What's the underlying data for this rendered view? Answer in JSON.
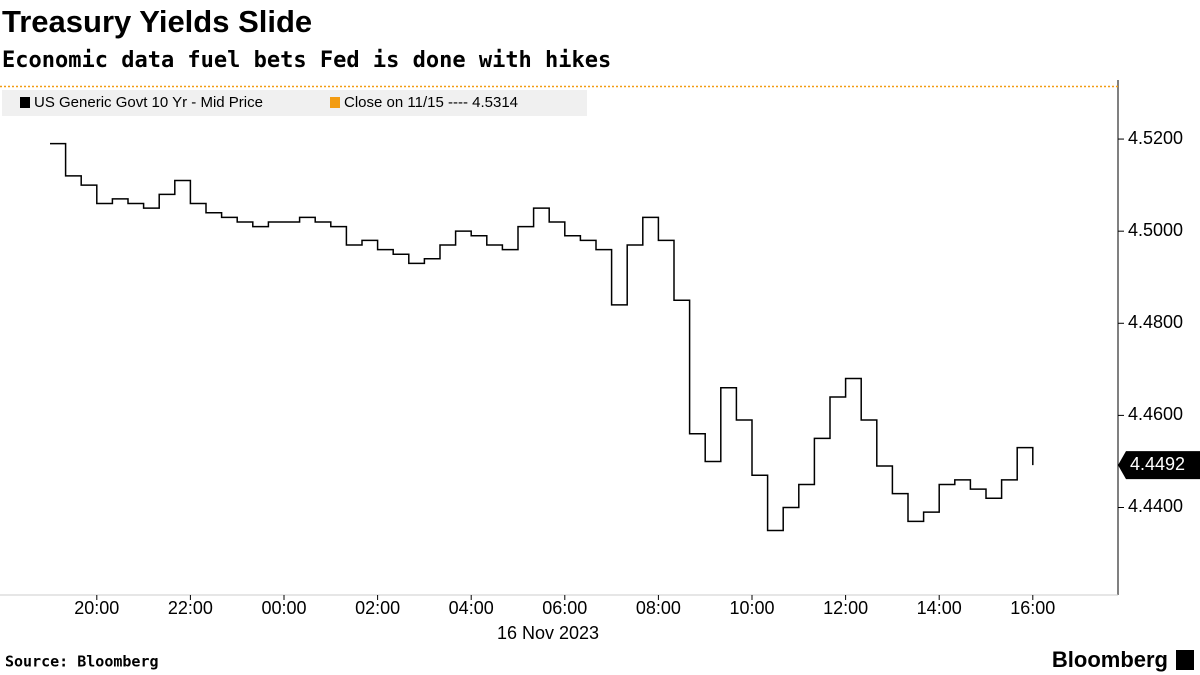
{
  "chart_data": {
    "type": "line",
    "title": "Treasury Yields Slide",
    "subtitle": "Economic data fuel bets Fed is done with hikes",
    "x": [
      "19:00",
      "19:20",
      "19:40",
      "20:00",
      "20:20",
      "20:40",
      "21:00",
      "21:20",
      "21:40",
      "22:00",
      "22:20",
      "22:40",
      "23:00",
      "23:20",
      "23:40",
      "00:00",
      "00:20",
      "00:40",
      "01:00",
      "01:20",
      "01:40",
      "02:00",
      "02:20",
      "02:40",
      "03:00",
      "03:20",
      "03:40",
      "04:00",
      "04:20",
      "04:40",
      "05:00",
      "05:20",
      "05:40",
      "06:00",
      "06:20",
      "06:40",
      "07:00",
      "07:20",
      "07:40",
      "08:00",
      "08:20",
      "08:40",
      "09:00",
      "09:20",
      "09:40",
      "10:00",
      "10:20",
      "10:40",
      "11:00",
      "11:20",
      "11:40",
      "12:00",
      "12:20",
      "12:40",
      "13:00",
      "13:20",
      "13:40",
      "14:00",
      "14:20",
      "14:40",
      "15:00",
      "15:20",
      "15:40",
      "16:00"
    ],
    "series": [
      {
        "name": "US Generic Govt 10 Yr - Mid Price",
        "color": "#000000",
        "values": [
          4.519,
          4.512,
          4.51,
          4.506,
          4.507,
          4.506,
          4.505,
          4.508,
          4.511,
          4.506,
          4.504,
          4.503,
          4.502,
          4.501,
          4.502,
          4.502,
          4.503,
          4.502,
          4.501,
          4.497,
          4.498,
          4.496,
          4.495,
          4.493,
          4.494,
          4.497,
          4.5,
          4.499,
          4.497,
          4.496,
          4.501,
          4.505,
          4.502,
          4.499,
          4.498,
          4.496,
          4.484,
          4.497,
          4.503,
          4.498,
          4.485,
          4.456,
          4.45,
          4.466,
          4.459,
          4.447,
          4.435,
          4.44,
          4.445,
          4.455,
          4.464,
          4.468,
          4.459,
          4.449,
          4.443,
          4.437,
          4.439,
          4.445,
          4.446,
          4.444,
          4.442,
          4.446,
          4.453,
          4.4492
        ]
      }
    ],
    "reference_line": {
      "label": "Close on 11/15 ----",
      "value": 4.5314,
      "color": "#f39c12"
    },
    "xticks": [
      "20:00",
      "22:00",
      "00:00",
      "02:00",
      "04:00",
      "06:00",
      "08:00",
      "10:00",
      "12:00",
      "14:00",
      "16:00"
    ],
    "xlabel": "16 Nov 2023",
    "ylim": [
      4.421,
      4.531
    ],
    "yticks": [
      {
        "value": 4.44,
        "label": "4.4400"
      },
      {
        "value": 4.46,
        "label": "4.4600"
      },
      {
        "value": 4.48,
        "label": "4.4800"
      },
      {
        "value": 4.5,
        "label": "4.5000"
      },
      {
        "value": 4.52,
        "label": "4.5200"
      }
    ],
    "source": "Source: Bloomberg",
    "logo": "Bloomberg"
  }
}
